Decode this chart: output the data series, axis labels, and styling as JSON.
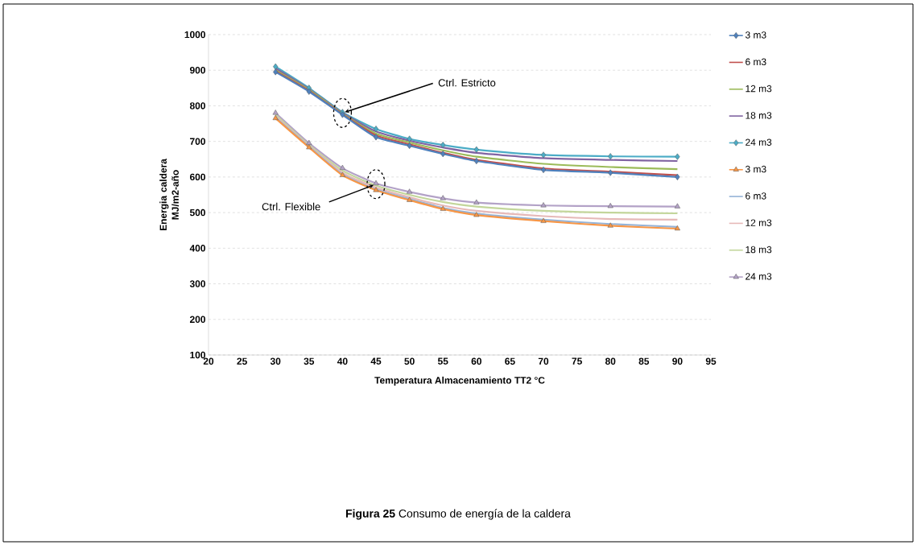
{
  "chart_data": {
    "type": "line",
    "xlabel": "Temperatura  Almacenamiento TT2 °C",
    "ylabel": "Energia caldera MJ/m2-año",
    "x": [
      30,
      35,
      40,
      45,
      50,
      55,
      60,
      70,
      80,
      90
    ],
    "xlim": [
      20,
      95
    ],
    "xticks": [
      20,
      25,
      30,
      35,
      40,
      45,
      50,
      55,
      60,
      65,
      70,
      75,
      80,
      85,
      90,
      95
    ],
    "ylim": [
      100,
      1000
    ],
    "yticks": [
      100,
      200,
      300,
      400,
      500,
      600,
      700,
      800,
      900,
      1000
    ],
    "grid": "y",
    "legend": "right",
    "series": [
      {
        "name": "3 m3",
        "color": "#4f81bd",
        "marker": "diamond",
        "values": [
          895,
          840,
          775,
          712,
          688,
          665,
          645,
          620,
          612,
          600
        ]
      },
      {
        "name": "6 m3",
        "color": "#c0504d",
        "marker": "none",
        "values": [
          897,
          842,
          776,
          717,
          692,
          668,
          648,
          624,
          615,
          605
        ]
      },
      {
        "name": "12 m3",
        "color": "#9bbb59",
        "marker": "none",
        "values": [
          900,
          845,
          778,
          722,
          697,
          675,
          657,
          637,
          628,
          622
        ]
      },
      {
        "name": "18 m3",
        "color": "#8064a2",
        "marker": "none",
        "values": [
          905,
          847,
          780,
          728,
          702,
          683,
          668,
          653,
          648,
          645
        ]
      },
      {
        "name": "24 m3",
        "color": "#4bacc6",
        "marker": "diamond",
        "values": [
          910,
          850,
          782,
          735,
          707,
          690,
          677,
          662,
          658,
          657
        ]
      },
      {
        "name": "3 m3",
        "color": "#f79646",
        "marker": "triangle",
        "values": [
          765,
          683,
          605,
          563,
          535,
          510,
          493,
          476,
          463,
          455
        ]
      },
      {
        "name": "6 m3",
        "color": "#95b3d7",
        "marker": "none",
        "values": [
          767,
          685,
          607,
          565,
          538,
          513,
          497,
          480,
          468,
          460
        ]
      },
      {
        "name": "12 m3",
        "color": "#e6b9b8",
        "marker": "none",
        "values": [
          770,
          687,
          612,
          570,
          543,
          520,
          505,
          490,
          482,
          480
        ]
      },
      {
        "name": "18 m3",
        "color": "#c3d69b",
        "marker": "none",
        "values": [
          775,
          690,
          618,
          576,
          550,
          530,
          517,
          505,
          500,
          498
        ]
      },
      {
        "name": "24 m3",
        "color": "#b3a2c7",
        "marker": "triangle",
        "values": [
          780,
          695,
          625,
          582,
          558,
          540,
          528,
          520,
          518,
          517
        ]
      }
    ],
    "annotations": [
      {
        "text": "Ctrl. Estricto",
        "x": 40,
        "y": 780
      },
      {
        "text": "Ctrl. Flexible",
        "x": 45,
        "y": 580
      },
      "**Figura 25** Consumo de energía de la caldera"
    ]
  }
}
